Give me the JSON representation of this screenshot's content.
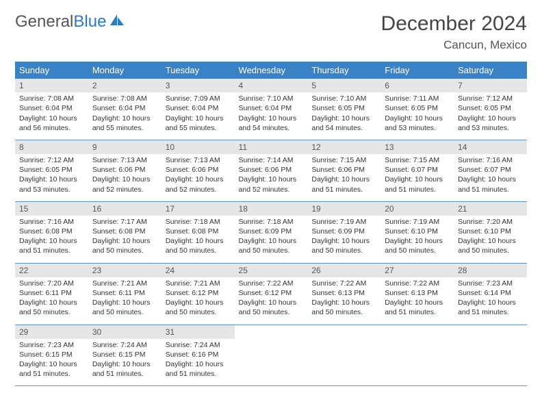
{
  "logo": {
    "word1": "General",
    "word2": "Blue"
  },
  "title": "December 2024",
  "location": "Cancun, Mexico",
  "colors": {
    "header_bg": "#3b82c4",
    "header_text": "#ffffff",
    "daynum_bg": "#e6e6e6",
    "row_border": "#5a8fb8",
    "logo_accent": "#2b7bbf",
    "logo_text": "#555555",
    "title_color": "#444444",
    "body_text": "#333333"
  },
  "weekdays": [
    "Sunday",
    "Monday",
    "Tuesday",
    "Wednesday",
    "Thursday",
    "Friday",
    "Saturday"
  ],
  "days": [
    {
      "n": "1",
      "sr": "Sunrise: 7:08 AM",
      "ss": "Sunset: 6:04 PM",
      "d1": "Daylight: 10 hours",
      "d2": "and 56 minutes."
    },
    {
      "n": "2",
      "sr": "Sunrise: 7:08 AM",
      "ss": "Sunset: 6:04 PM",
      "d1": "Daylight: 10 hours",
      "d2": "and 55 minutes."
    },
    {
      "n": "3",
      "sr": "Sunrise: 7:09 AM",
      "ss": "Sunset: 6:04 PM",
      "d1": "Daylight: 10 hours",
      "d2": "and 55 minutes."
    },
    {
      "n": "4",
      "sr": "Sunrise: 7:10 AM",
      "ss": "Sunset: 6:04 PM",
      "d1": "Daylight: 10 hours",
      "d2": "and 54 minutes."
    },
    {
      "n": "5",
      "sr": "Sunrise: 7:10 AM",
      "ss": "Sunset: 6:05 PM",
      "d1": "Daylight: 10 hours",
      "d2": "and 54 minutes."
    },
    {
      "n": "6",
      "sr": "Sunrise: 7:11 AM",
      "ss": "Sunset: 6:05 PM",
      "d1": "Daylight: 10 hours",
      "d2": "and 53 minutes."
    },
    {
      "n": "7",
      "sr": "Sunrise: 7:12 AM",
      "ss": "Sunset: 6:05 PM",
      "d1": "Daylight: 10 hours",
      "d2": "and 53 minutes."
    },
    {
      "n": "8",
      "sr": "Sunrise: 7:12 AM",
      "ss": "Sunset: 6:05 PM",
      "d1": "Daylight: 10 hours",
      "d2": "and 53 minutes."
    },
    {
      "n": "9",
      "sr": "Sunrise: 7:13 AM",
      "ss": "Sunset: 6:06 PM",
      "d1": "Daylight: 10 hours",
      "d2": "and 52 minutes."
    },
    {
      "n": "10",
      "sr": "Sunrise: 7:13 AM",
      "ss": "Sunset: 6:06 PM",
      "d1": "Daylight: 10 hours",
      "d2": "and 52 minutes."
    },
    {
      "n": "11",
      "sr": "Sunrise: 7:14 AM",
      "ss": "Sunset: 6:06 PM",
      "d1": "Daylight: 10 hours",
      "d2": "and 52 minutes."
    },
    {
      "n": "12",
      "sr": "Sunrise: 7:15 AM",
      "ss": "Sunset: 6:06 PM",
      "d1": "Daylight: 10 hours",
      "d2": "and 51 minutes."
    },
    {
      "n": "13",
      "sr": "Sunrise: 7:15 AM",
      "ss": "Sunset: 6:07 PM",
      "d1": "Daylight: 10 hours",
      "d2": "and 51 minutes."
    },
    {
      "n": "14",
      "sr": "Sunrise: 7:16 AM",
      "ss": "Sunset: 6:07 PM",
      "d1": "Daylight: 10 hours",
      "d2": "and 51 minutes."
    },
    {
      "n": "15",
      "sr": "Sunrise: 7:16 AM",
      "ss": "Sunset: 6:08 PM",
      "d1": "Daylight: 10 hours",
      "d2": "and 51 minutes."
    },
    {
      "n": "16",
      "sr": "Sunrise: 7:17 AM",
      "ss": "Sunset: 6:08 PM",
      "d1": "Daylight: 10 hours",
      "d2": "and 50 minutes."
    },
    {
      "n": "17",
      "sr": "Sunrise: 7:18 AM",
      "ss": "Sunset: 6:08 PM",
      "d1": "Daylight: 10 hours",
      "d2": "and 50 minutes."
    },
    {
      "n": "18",
      "sr": "Sunrise: 7:18 AM",
      "ss": "Sunset: 6:09 PM",
      "d1": "Daylight: 10 hours",
      "d2": "and 50 minutes."
    },
    {
      "n": "19",
      "sr": "Sunrise: 7:19 AM",
      "ss": "Sunset: 6:09 PM",
      "d1": "Daylight: 10 hours",
      "d2": "and 50 minutes."
    },
    {
      "n": "20",
      "sr": "Sunrise: 7:19 AM",
      "ss": "Sunset: 6:10 PM",
      "d1": "Daylight: 10 hours",
      "d2": "and 50 minutes."
    },
    {
      "n": "21",
      "sr": "Sunrise: 7:20 AM",
      "ss": "Sunset: 6:10 PM",
      "d1": "Daylight: 10 hours",
      "d2": "and 50 minutes."
    },
    {
      "n": "22",
      "sr": "Sunrise: 7:20 AM",
      "ss": "Sunset: 6:11 PM",
      "d1": "Daylight: 10 hours",
      "d2": "and 50 minutes."
    },
    {
      "n": "23",
      "sr": "Sunrise: 7:21 AM",
      "ss": "Sunset: 6:11 PM",
      "d1": "Daylight: 10 hours",
      "d2": "and 50 minutes."
    },
    {
      "n": "24",
      "sr": "Sunrise: 7:21 AM",
      "ss": "Sunset: 6:12 PM",
      "d1": "Daylight: 10 hours",
      "d2": "and 50 minutes."
    },
    {
      "n": "25",
      "sr": "Sunrise: 7:22 AM",
      "ss": "Sunset: 6:12 PM",
      "d1": "Daylight: 10 hours",
      "d2": "and 50 minutes."
    },
    {
      "n": "26",
      "sr": "Sunrise: 7:22 AM",
      "ss": "Sunset: 6:13 PM",
      "d1": "Daylight: 10 hours",
      "d2": "and 50 minutes."
    },
    {
      "n": "27",
      "sr": "Sunrise: 7:22 AM",
      "ss": "Sunset: 6:13 PM",
      "d1": "Daylight: 10 hours",
      "d2": "and 51 minutes."
    },
    {
      "n": "28",
      "sr": "Sunrise: 7:23 AM",
      "ss": "Sunset: 6:14 PM",
      "d1": "Daylight: 10 hours",
      "d2": "and 51 minutes."
    },
    {
      "n": "29",
      "sr": "Sunrise: 7:23 AM",
      "ss": "Sunset: 6:15 PM",
      "d1": "Daylight: 10 hours",
      "d2": "and 51 minutes."
    },
    {
      "n": "30",
      "sr": "Sunrise: 7:24 AM",
      "ss": "Sunset: 6:15 PM",
      "d1": "Daylight: 10 hours",
      "d2": "and 51 minutes."
    },
    {
      "n": "31",
      "sr": "Sunrise: 7:24 AM",
      "ss": "Sunset: 6:16 PM",
      "d1": "Daylight: 10 hours",
      "d2": "and 51 minutes."
    }
  ]
}
